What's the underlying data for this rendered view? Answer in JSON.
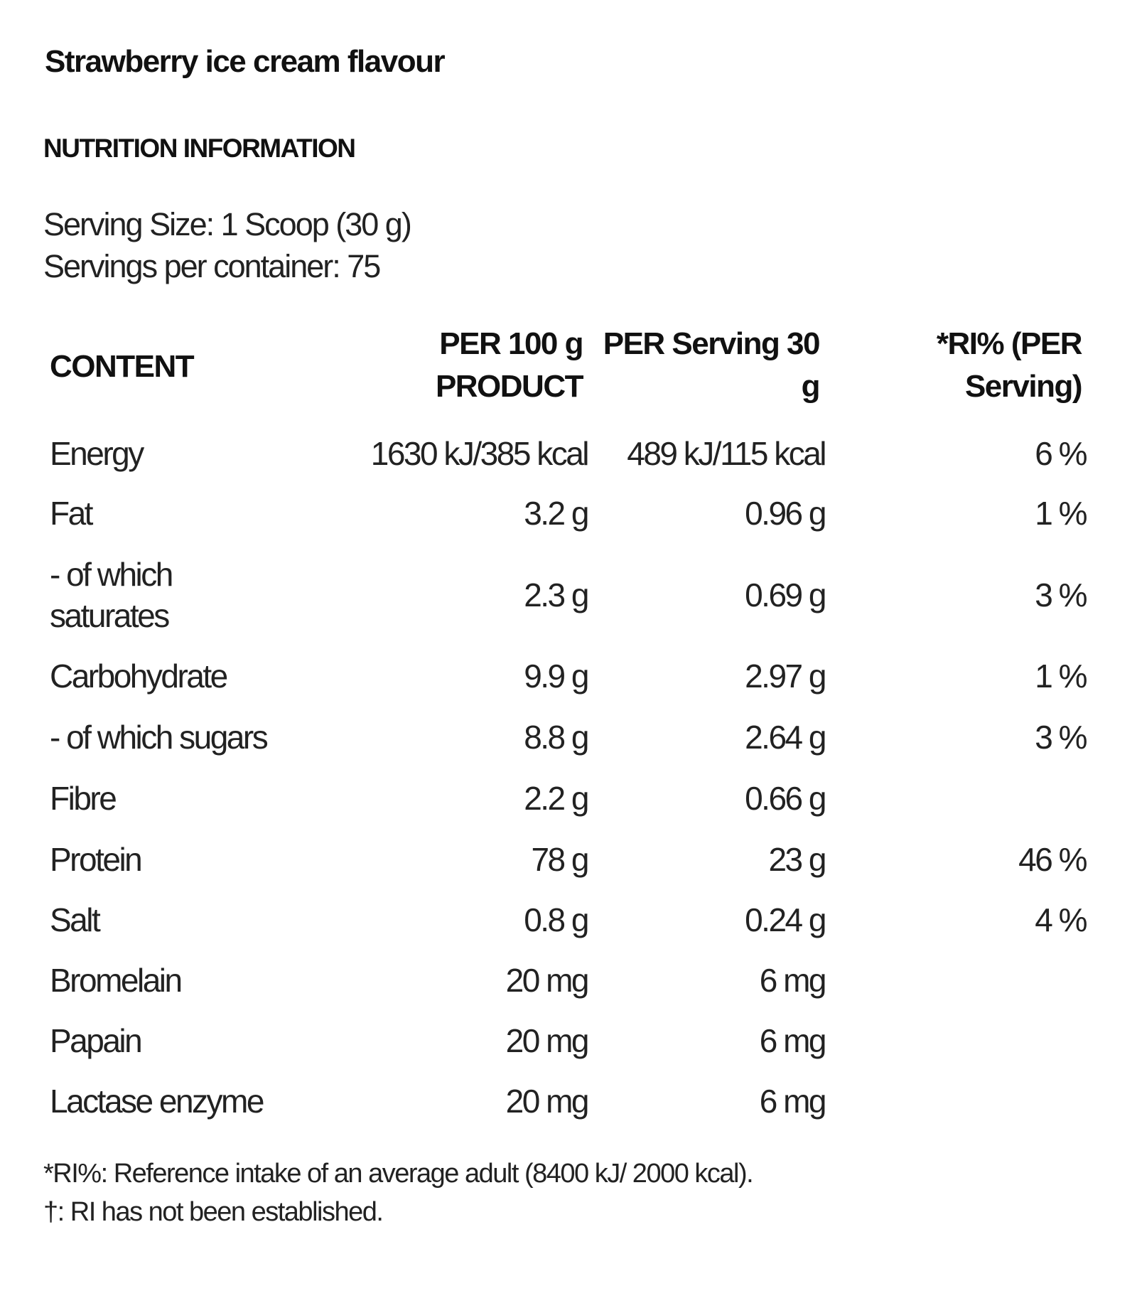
{
  "title": "Strawberry ice cream flavour",
  "subtitle": "NUTRITION INFORMATION",
  "serving_size": "Serving Size: 1 Scoop (30 g)",
  "servings_per_container": "Servings per container: 75",
  "table": {
    "headers": {
      "content": "CONTENT",
      "per100_line1": "PER 100 g",
      "per100_line2": "PRODUCT",
      "perserving_line1": "PER Serving 30",
      "perserving_line2": "g",
      "ri_line1": "*RI% (PER",
      "ri_line2": "Serving)"
    },
    "rows": [
      {
        "name": "Energy",
        "per100": "1630 kJ/385 kcal",
        "perserving": "489 kJ/115 kcal",
        "ri": "6 %"
      },
      {
        "name": "Fat",
        "per100": "3.2 g",
        "perserving": "0.96 g",
        "ri": "1 %"
      },
      {
        "name": "- of which",
        "name2": "saturates",
        "per100": "2.3 g",
        "perserving": "0.69 g",
        "ri": "3 %"
      },
      {
        "name": "Carbohydrate",
        "per100": "9.9 g",
        "perserving": "2.97 g",
        "ri": "1 %"
      },
      {
        "name": "- of which sugars",
        "per100": "8.8 g",
        "perserving": "2.64 g",
        "ri": "3 %"
      },
      {
        "name": "Fibre",
        "per100": "2.2 g",
        "perserving": "0.66 g",
        "ri": ""
      },
      {
        "name": "Protein",
        "per100": "78 g",
        "perserving": "23 g",
        "ri": "46 %"
      },
      {
        "name": "Salt",
        "per100": "0.8 g",
        "perserving": "0.24 g",
        "ri": "4 %"
      },
      {
        "name": "Bromelain",
        "per100": "20 mg",
        "perserving": "6 mg",
        "ri": ""
      },
      {
        "name": "Papain",
        "per100": "20 mg",
        "perserving": "6 mg",
        "ri": ""
      },
      {
        "name": "Lactase enzyme",
        "per100": "20 mg",
        "perserving": "6 mg",
        "ri": ""
      }
    ]
  },
  "footnotes": [
    "*RI%: Reference intake of an average adult (8400 kJ/ 2000 kcal).",
    "†: RI has not been established."
  ]
}
